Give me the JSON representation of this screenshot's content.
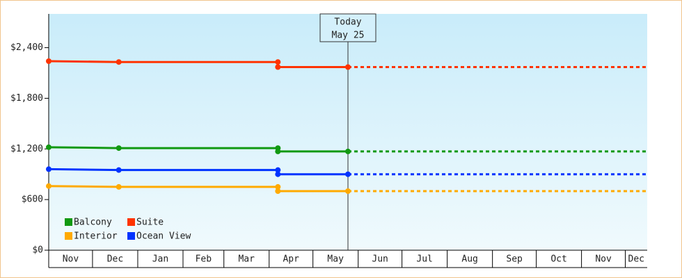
{
  "chart_data": {
    "type": "line",
    "x": [
      0,
      48,
      157,
      157,
      205
    ],
    "xlim": [
      0,
      410
    ],
    "xticks": [
      {
        "value": 0,
        "label": "Nov"
      },
      {
        "value": 30,
        "label": "Dec"
      },
      {
        "value": 61,
        "label": "Jan"
      },
      {
        "value": 92,
        "label": "Feb"
      },
      {
        "value": 120,
        "label": "Mar"
      },
      {
        "value": 151,
        "label": "Apr"
      },
      {
        "value": 181,
        "label": "May"
      },
      {
        "value": 212,
        "label": "Jun"
      },
      {
        "value": 242,
        "label": "Jul"
      },
      {
        "value": 273,
        "label": "Aug"
      },
      {
        "value": 304,
        "label": "Sep"
      },
      {
        "value": 334,
        "label": "Oct"
      },
      {
        "value": 365,
        "label": "Nov"
      },
      {
        "value": 395,
        "label": "Dec"
      }
    ],
    "ylim": [
      0,
      2800
    ],
    "yticks": [
      {
        "value": 0,
        "label": "$0"
      },
      {
        "value": 600,
        "label": "$600"
      },
      {
        "value": 1200,
        "label": "$1,200"
      },
      {
        "value": 1800,
        "label": "$1,800"
      },
      {
        "value": 2400,
        "label": "$2,400"
      }
    ],
    "series": [
      {
        "name": "Balcony",
        "color": "#119911",
        "values": [
          1220,
          1210,
          1210,
          1170,
          1170
        ]
      },
      {
        "name": "Suite",
        "color": "#ff3300",
        "values": [
          2240,
          2230,
          2230,
          2170,
          2170
        ]
      },
      {
        "name": "Interior",
        "color": "#ffaa00",
        "values": [
          760,
          750,
          750,
          700,
          700
        ]
      },
      {
        "name": "Ocean View",
        "color": "#0033ff",
        "values": [
          960,
          950,
          950,
          900,
          900
        ]
      }
    ],
    "annotation": {
      "x": 205,
      "lines": [
        "Today",
        "May 25"
      ]
    },
    "legend": "lower-left"
  }
}
